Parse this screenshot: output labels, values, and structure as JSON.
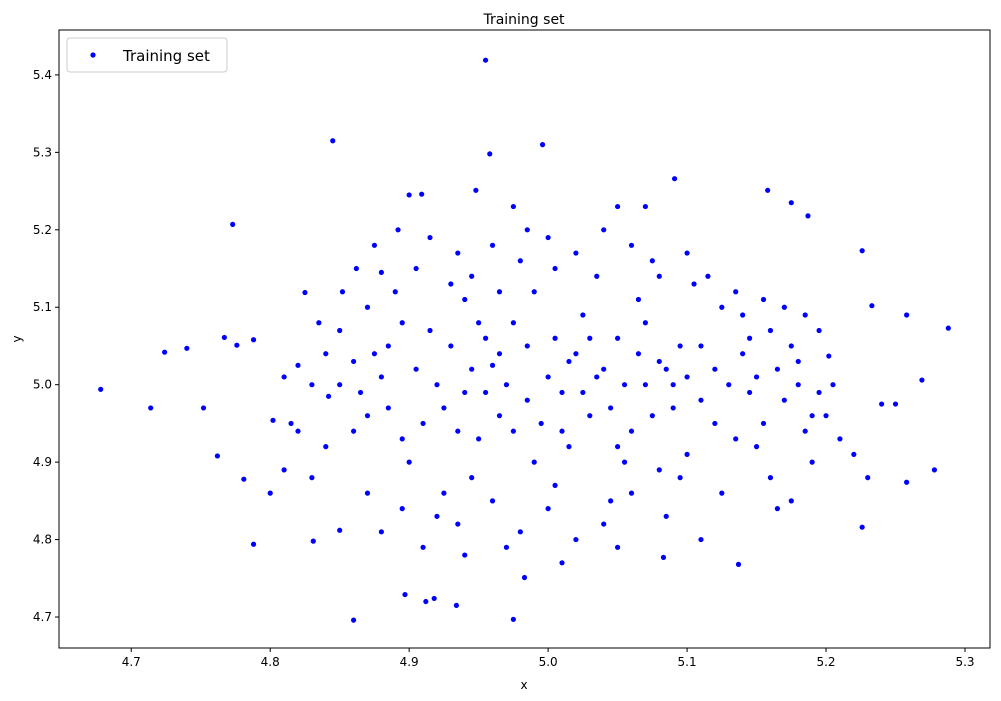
{
  "chart_data": {
    "type": "scatter",
    "title": "Training set",
    "xlabel": "x",
    "ylabel": "y",
    "xlim": [
      4.648,
      5.318
    ],
    "ylim": [
      4.66,
      5.458
    ],
    "xticks": [
      "4.7",
      "4.8",
      "4.9",
      "5.0",
      "5.1",
      "5.2",
      "5.3"
    ],
    "yticks": [
      "4.7",
      "4.8",
      "4.9",
      "5.0",
      "5.1",
      "5.2",
      "5.3",
      "5.4"
    ],
    "grid": false,
    "legend": {
      "position": "top-left",
      "entries": [
        "Training set"
      ]
    },
    "series": [
      {
        "name": "Training set",
        "color": "#0000ff",
        "marker": "circle",
        "points": [
          [
            4.678,
            4.994
          ],
          [
            4.714,
            4.97
          ],
          [
            4.724,
            5.042
          ],
          [
            4.74,
            5.047
          ],
          [
            4.773,
            5.207
          ],
          [
            4.788,
            4.794
          ],
          [
            4.845,
            5.315
          ],
          [
            4.955,
            5.419
          ],
          [
            4.958,
            5.298
          ],
          [
            4.996,
            5.31
          ],
          [
            4.86,
            4.696
          ],
          [
            4.975,
            4.697
          ],
          [
            5.288,
            5.073
          ],
          [
            5.278,
            4.89
          ],
          [
            5.269,
            5.006
          ],
          [
            5.258,
            4.874
          ],
          [
            5.226,
            5.173
          ],
          [
            5.226,
            4.816
          ],
          [
            5.137,
            4.768
          ],
          [
            4.897,
            4.729
          ],
          [
            4.934,
            4.715
          ],
          [
            4.983,
            4.751
          ],
          [
            5.091,
            5.266
          ],
          [
            5.158,
            5.251
          ],
          [
            5.175,
            5.235
          ],
          [
            5.187,
            5.218
          ],
          [
            5.258,
            5.09
          ],
          [
            5.233,
            5.102
          ],
          [
            5.202,
            5.037
          ],
          [
            4.762,
            4.908
          ],
          [
            4.781,
            4.878
          ],
          [
            4.752,
            4.97
          ],
          [
            5.083,
            4.777
          ],
          [
            4.948,
            5.251
          ],
          [
            4.9,
            5.245
          ],
          [
            4.909,
            5.246
          ],
          [
            4.767,
            5.061
          ],
          [
            4.776,
            5.051
          ],
          [
            4.788,
            5.058
          ],
          [
            4.802,
            4.954
          ],
          [
            4.831,
            4.798
          ],
          [
            4.912,
            4.72
          ],
          [
            4.918,
            4.724
          ],
          [
            4.85,
            4.812
          ],
          [
            4.86,
            4.94
          ],
          [
            4.842,
            4.985
          ],
          [
            4.82,
            5.025
          ],
          [
            4.835,
            5.08
          ],
          [
            4.825,
            5.119
          ],
          [
            4.852,
            5.12
          ],
          [
            4.87,
            5.1
          ],
          [
            4.88,
            5.145
          ],
          [
            4.892,
            5.2
          ],
          [
            4.905,
            5.15
          ],
          [
            4.93,
            5.13
          ],
          [
            4.94,
            5.11
          ],
          [
            4.955,
            5.06
          ],
          [
            4.96,
            5.025
          ],
          [
            4.97,
            5.0
          ],
          [
            4.985,
            4.98
          ],
          [
            5.0,
            5.01
          ],
          [
            5.01,
            4.99
          ],
          [
            5.02,
            5.04
          ],
          [
            5.03,
            4.96
          ],
          [
            5.04,
            5.02
          ],
          [
            5.05,
            5.06
          ],
          [
            5.06,
            4.94
          ],
          [
            5.07,
            5.0
          ],
          [
            5.08,
            5.03
          ],
          [
            5.09,
            4.97
          ],
          [
            5.1,
            5.01
          ],
          [
            5.11,
            5.05
          ],
          [
            5.12,
            4.95
          ],
          [
            5.13,
            5.0
          ],
          [
            5.14,
            5.04
          ],
          [
            5.15,
            4.92
          ],
          [
            5.16,
            5.07
          ],
          [
            5.17,
            4.98
          ],
          [
            5.18,
            5.03
          ],
          [
            5.19,
            4.96
          ],
          [
            4.9,
            4.9
          ],
          [
            4.91,
            4.95
          ],
          [
            4.92,
            5.0
          ],
          [
            4.93,
            5.05
          ],
          [
            4.945,
            4.88
          ],
          [
            4.95,
            4.93
          ],
          [
            4.965,
            4.96
          ],
          [
            4.975,
            5.08
          ],
          [
            4.99,
            5.12
          ],
          [
            5.005,
            4.87
          ],
          [
            5.015,
            4.92
          ],
          [
            5.025,
            5.09
          ],
          [
            5.035,
            5.14
          ],
          [
            5.045,
            4.85
          ],
          [
            5.055,
            4.9
          ],
          [
            5.065,
            5.11
          ],
          [
            5.075,
            5.16
          ],
          [
            5.085,
            4.83
          ],
          [
            5.095,
            4.88
          ],
          [
            5.105,
            5.13
          ],
          [
            4.88,
            5.01
          ],
          [
            4.87,
            4.96
          ],
          [
            4.86,
            5.03
          ],
          [
            4.85,
            5.07
          ],
          [
            4.84,
            4.92
          ],
          [
            4.83,
            4.88
          ],
          [
            4.815,
            4.95
          ],
          [
            4.81,
            5.01
          ],
          [
            4.895,
            5.08
          ],
          [
            4.885,
            5.05
          ],
          [
            4.925,
            4.86
          ],
          [
            4.935,
            4.82
          ],
          [
            4.96,
            4.85
          ],
          [
            4.98,
            4.81
          ],
          [
            5.0,
            4.84
          ],
          [
            5.02,
            4.8
          ],
          [
            5.04,
            4.82
          ],
          [
            5.06,
            4.86
          ],
          [
            5.08,
            4.89
          ],
          [
            5.1,
            4.91
          ],
          [
            4.96,
            5.18
          ],
          [
            4.98,
            5.16
          ],
          [
            5.0,
            5.19
          ],
          [
            5.02,
            5.17
          ],
          [
            5.04,
            5.2
          ],
          [
            5.06,
            5.18
          ],
          [
            5.08,
            5.14
          ],
          [
            5.1,
            5.17
          ],
          [
            5.05,
            5.23
          ],
          [
            4.975,
            5.23
          ],
          [
            5.14,
            5.09
          ],
          [
            5.15,
            5.01
          ],
          [
            5.16,
            4.88
          ],
          [
            5.17,
            5.1
          ],
          [
            5.18,
            5.0
          ],
          [
            5.19,
            4.9
          ],
          [
            5.2,
            4.96
          ],
          [
            5.21,
            4.93
          ],
          [
            5.22,
            4.91
          ],
          [
            5.24,
            4.975
          ],
          [
            5.125,
            4.86
          ],
          [
            5.135,
            4.93
          ],
          [
            5.145,
            5.06
          ],
          [
            5.155,
            5.11
          ],
          [
            5.165,
            4.84
          ],
          [
            5.175,
            4.85
          ],
          [
            5.185,
            5.09
          ],
          [
            5.195,
            4.99
          ],
          [
            5.23,
            4.88
          ],
          [
            5.25,
            4.975
          ],
          [
            4.905,
            5.02
          ],
          [
            4.915,
            5.07
          ],
          [
            4.925,
            4.97
          ],
          [
            4.935,
            4.94
          ],
          [
            4.945,
            5.02
          ],
          [
            4.955,
            4.99
          ],
          [
            4.965,
            5.04
          ],
          [
            4.975,
            4.94
          ],
          [
            4.985,
            5.05
          ],
          [
            4.995,
            4.95
          ],
          [
            5.005,
            5.06
          ],
          [
            5.015,
            5.03
          ],
          [
            5.025,
            4.99
          ],
          [
            5.035,
            5.01
          ],
          [
            5.045,
            4.97
          ],
          [
            5.055,
            5.0
          ],
          [
            5.065,
            5.04
          ],
          [
            5.075,
            4.96
          ],
          [
            5.085,
            5.02
          ],
          [
            5.095,
            5.05
          ],
          [
            4.94,
            4.99
          ],
          [
            4.95,
            5.08
          ],
          [
            4.99,
            4.9
          ],
          [
            5.01,
            4.94
          ],
          [
            5.03,
            5.06
          ],
          [
            5.05,
            4.92
          ],
          [
            5.07,
            5.08
          ],
          [
            5.09,
            5.0
          ],
          [
            5.11,
            4.98
          ],
          [
            5.12,
            5.02
          ],
          [
            4.87,
            4.86
          ],
          [
            4.88,
            4.81
          ],
          [
            4.895,
            4.84
          ],
          [
            4.91,
            4.79
          ],
          [
            4.92,
            4.83
          ],
          [
            4.94,
            4.78
          ],
          [
            4.97,
            4.79
          ],
          [
            5.01,
            4.77
          ],
          [
            5.05,
            4.79
          ],
          [
            5.11,
            4.8
          ],
          [
            4.862,
            5.15
          ],
          [
            4.875,
            5.18
          ],
          [
            4.89,
            5.12
          ],
          [
            4.915,
            5.19
          ],
          [
            4.935,
            5.17
          ],
          [
            4.945,
            5.14
          ],
          [
            4.965,
            5.12
          ],
          [
            4.985,
            5.2
          ],
          [
            5.005,
            5.15
          ],
          [
            5.07,
            5.23
          ],
          [
            4.8,
            4.86
          ],
          [
            4.81,
            4.89
          ],
          [
            4.82,
            4.94
          ],
          [
            4.83,
            5.0
          ],
          [
            4.84,
            5.04
          ],
          [
            4.85,
            5.0
          ],
          [
            4.865,
            4.99
          ],
          [
            4.875,
            5.04
          ],
          [
            4.885,
            4.97
          ],
          [
            4.895,
            4.93
          ],
          [
            5.115,
            5.14
          ],
          [
            5.125,
            5.1
          ],
          [
            5.135,
            5.12
          ],
          [
            5.145,
            4.99
          ],
          [
            5.155,
            4.95
          ],
          [
            5.165,
            5.02
          ],
          [
            5.175,
            5.05
          ],
          [
            5.185,
            4.94
          ],
          [
            5.195,
            5.07
          ],
          [
            5.205,
            5.0
          ]
        ]
      }
    ]
  }
}
